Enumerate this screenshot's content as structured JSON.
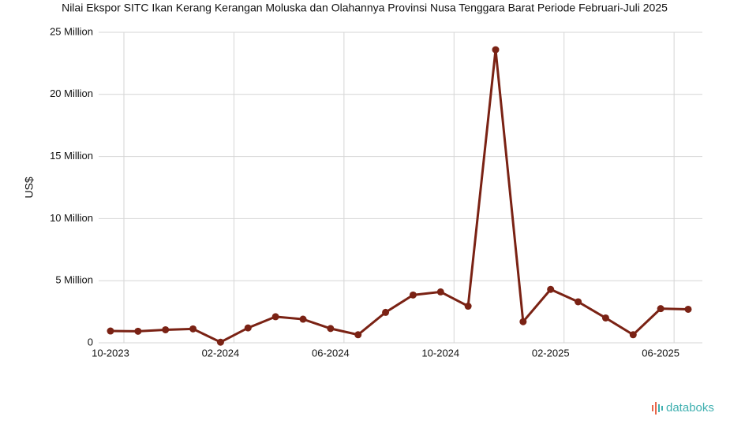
{
  "chart_data": {
    "type": "line",
    "title": "Nilai Ekspor SITC Ikan Kerang Kerangan Moluska dan Olahannya Provinsi Nusa Tenggara Barat Periode Februari-Juli 2025",
    "ylabel": "US$",
    "x": [
      "2023-10",
      "2023-11",
      "2023-12",
      "2024-01",
      "2024-02",
      "2024-03",
      "2024-04",
      "2024-05",
      "2024-06",
      "2024-07",
      "2024-08",
      "2024-09",
      "2024-10",
      "2024-11",
      "2024-12",
      "2025-01",
      "2025-02",
      "2025-03",
      "2025-04",
      "2025-05",
      "2025-06",
      "2025-07"
    ],
    "series": [
      {
        "name": "Nilai Ekspor",
        "color": "#7a2214",
        "values": [
          950000,
          930000,
          1050000,
          1120000,
          50000,
          1200000,
          2100000,
          1900000,
          1150000,
          650000,
          2450000,
          3850000,
          4100000,
          2950000,
          23600000,
          1700000,
          4300000,
          3300000,
          2000000,
          650000,
          2750000,
          2700000
        ]
      }
    ],
    "xticks": [
      {
        "value": "2023-10",
        "label": "10-2023"
      },
      {
        "value": "2024-02",
        "label": "02-2024"
      },
      {
        "value": "2024-06",
        "label": "06-2024"
      },
      {
        "value": "2024-10",
        "label": "10-2024"
      },
      {
        "value": "2025-02",
        "label": "02-2025"
      },
      {
        "value": "2025-06",
        "label": "06-2025"
      }
    ],
    "ylim": [
      0,
      25000000
    ],
    "yticks": [
      0,
      {
        "value": 5000000,
        "label": "5 Million"
      },
      {
        "value": 10000000,
        "label": "10 Million"
      },
      {
        "value": 15000000,
        "label": "15 Million"
      },
      {
        "value": 20000000,
        "label": "20 Million"
      },
      {
        "value": 25000000,
        "label": "25 Million"
      }
    ],
    "grid": true,
    "source": "databoks"
  }
}
